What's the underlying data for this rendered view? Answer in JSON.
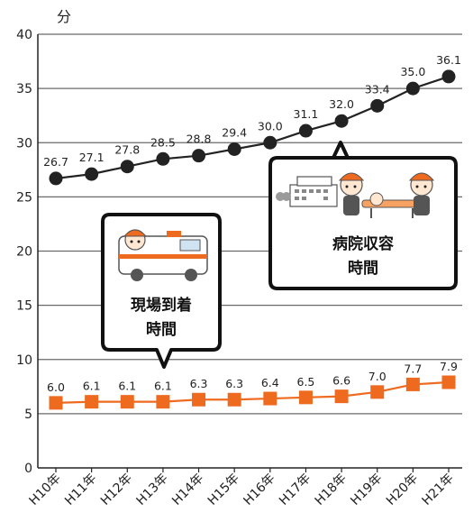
{
  "chart_data": {
    "type": "line",
    "ylabel": "分",
    "ylim": [
      0,
      40
    ],
    "yticks": [
      0,
      5,
      10,
      15,
      20,
      25,
      30,
      35,
      40
    ],
    "grid": "horizontal",
    "categories": [
      "H10年",
      "H11年",
      "H12年",
      "H13年",
      "H14年",
      "H15年",
      "H16年",
      "H17年",
      "H18年",
      "H19年",
      "H20年",
      "H21年"
    ],
    "series": [
      {
        "name": "病院収容時間",
        "values": [
          26.7,
          27.1,
          27.8,
          28.5,
          28.8,
          29.4,
          30.0,
          31.1,
          32.0,
          33.4,
          35.0,
          36.1
        ],
        "labels": [
          "26.7",
          "27.1",
          "27.8",
          "28.5",
          "28.8",
          "29.4",
          "30.0",
          "31.1",
          "32.0",
          "33.4",
          "35.0",
          "36.1"
        ],
        "color": "#222222",
        "marker": "circle"
      },
      {
        "name": "現場到着時間",
        "values": [
          6.0,
          6.1,
          6.1,
          6.1,
          6.3,
          6.3,
          6.4,
          6.5,
          6.6,
          7.0,
          7.7,
          7.9
        ],
        "labels": [
          "6.0",
          "6.1",
          "6.1",
          "6.1",
          "6.3",
          "6.3",
          "6.4",
          "6.5",
          "6.6",
          "7.0",
          "7.7",
          "7.9"
        ],
        "color": "#ee6a1f",
        "marker": "square"
      }
    ],
    "callouts": [
      {
        "series": "病院収容時間",
        "lines": [
          "病院収容",
          "時間"
        ]
      },
      {
        "series": "現場到着時間",
        "lines": [
          "現場到着",
          "時間"
        ]
      }
    ]
  }
}
